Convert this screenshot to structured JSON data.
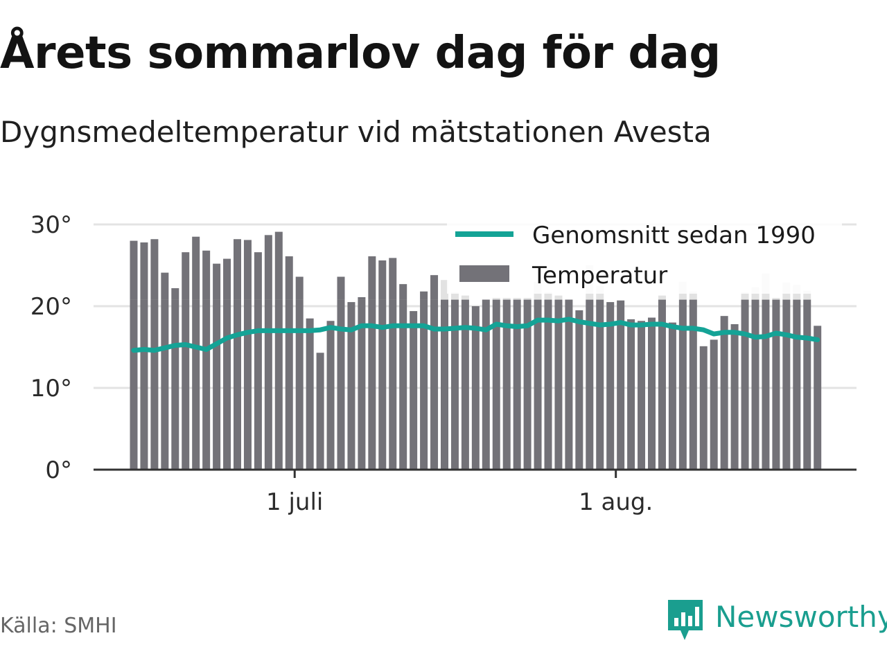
{
  "header": {
    "title": "Årets sommarlov dag för dag",
    "subtitle": "Dygnsmedeltemperatur vid mätstationen Avesta"
  },
  "footer": {
    "source": "Källa: SMHI",
    "brand": "Newsworthy"
  },
  "colors": {
    "bar": "#737278",
    "bar_normal_overlay": "#e2e2e2",
    "line": "#14a396",
    "grid": "#e3e3e3",
    "axis": "#333333",
    "brand": "#1a9e8f"
  },
  "chart_data": {
    "type": "bar",
    "title": "Årets sommarlov dag för dag",
    "subtitle": "Dygnsmedeltemperatur vid mätstationen Avesta",
    "ylim": [
      0,
      30
    ],
    "y_ticks": [
      {
        "value": 0,
        "label": "0°"
      },
      {
        "value": 10,
        "label": "10°"
      },
      {
        "value": 20,
        "label": "20°"
      },
      {
        "value": 30,
        "label": "30°"
      }
    ],
    "x_ticks": [
      {
        "day_index": 16,
        "label": "1 juli"
      },
      {
        "day_index": 47,
        "label": "1 aug."
      }
    ],
    "grid": true,
    "legend": {
      "position": "top-right",
      "items": [
        {
          "label": "Genomsnitt sedan 1990",
          "kind": "line"
        },
        {
          "label": "Temperatur",
          "kind": "bar"
        }
      ]
    },
    "series": [
      {
        "name": "Temperatur",
        "kind": "bar",
        "values": [
          28.0,
          27.8,
          28.2,
          24.1,
          22.2,
          26.6,
          28.5,
          26.8,
          25.2,
          25.8,
          28.2,
          28.1,
          26.6,
          28.7,
          29.1,
          26.1,
          23.6,
          18.5,
          14.3,
          18.2,
          23.6,
          20.5,
          21.1,
          26.1,
          25.6,
          25.9,
          22.7,
          19.4,
          21.8,
          23.8,
          23.2,
          21.7,
          21.3,
          20.0,
          20.8,
          21.0,
          21.0,
          21.0,
          21.0,
          23.0,
          21.7,
          21.3,
          20.8,
          19.5,
          25.0,
          22.5,
          20.5,
          20.7,
          18.4,
          18.2,
          18.6,
          21.3,
          18.0,
          23.0,
          21.8,
          15.1,
          15.9,
          18.8,
          17.8,
          21.7,
          22.3,
          24.0,
          21.0,
          22.9,
          22.6,
          21.9,
          17.6
        ]
      },
      {
        "name": "Genomsnitt sedan 1990",
        "kind": "line",
        "values": [
          14.6,
          14.7,
          14.6,
          14.9,
          15.2,
          15.3,
          15.0,
          14.7,
          15.4,
          16.1,
          16.5,
          16.8,
          17.0,
          17.0,
          17.0,
          17.0,
          17.0,
          17.0,
          17.1,
          17.4,
          17.2,
          17.1,
          17.6,
          17.6,
          17.4,
          17.6,
          17.6,
          17.6,
          17.6,
          17.2,
          17.2,
          17.3,
          17.4,
          17.3,
          17.1,
          17.8,
          17.6,
          17.5,
          17.6,
          18.3,
          18.3,
          18.2,
          18.4,
          18.1,
          17.9,
          17.7,
          17.8,
          18.0,
          17.7,
          17.7,
          17.8,
          17.8,
          17.5,
          17.3,
          17.3,
          17.1,
          16.6,
          16.8,
          16.8,
          16.6,
          16.2,
          16.3,
          16.7,
          16.5,
          16.2,
          16.1,
          15.9
        ]
      }
    ]
  }
}
